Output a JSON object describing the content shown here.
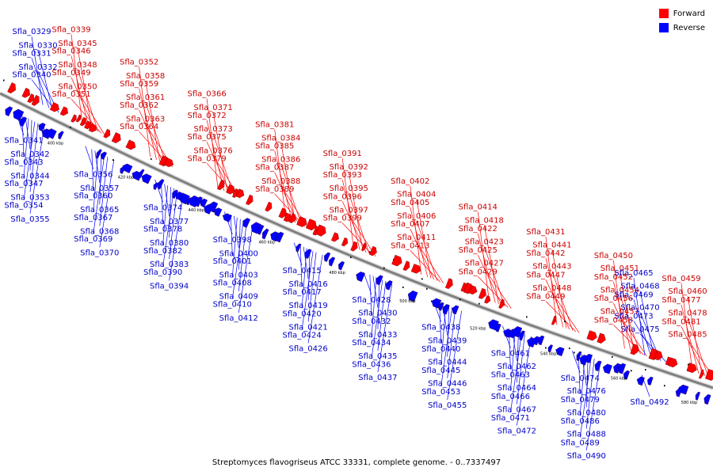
{
  "legend": {
    "forward_label": "Forward",
    "reverse_label": "Reverse",
    "forward_color": "#ff0000",
    "reverse_color": "#0000ff"
  },
  "footer": {
    "caption": "Streptomyces flavogriseus ATCC 33331, complete genome. - 0..7337497"
  },
  "colors": {
    "backbone": "#808080",
    "forward_text": "#cc0000",
    "reverse_text": "#0000cc"
  },
  "ticks": [
    "400 kbp",
    "420 kbp",
    "440 kbp",
    "460 kbp",
    "480 kbp",
    "500 kbp",
    "520 kbp",
    "540 kbp",
    "560 kbp",
    "580 kbp"
  ],
  "forward_genes": [
    "Sfla_0339",
    "Sfla_0345",
    "Sfla_0346",
    "Sfla_0348",
    "Sfla_0349",
    "Sfla_0350",
    "Sfla_0351",
    "Sfla_0352",
    "Sfla_0358",
    "Sfla_0359",
    "Sfla_0361",
    "Sfla_0362",
    "Sfla_0363",
    "Sfla_0364",
    "Sfla_0366",
    "Sfla_0371",
    "Sfla_0372",
    "Sfla_0373",
    "Sfla_0375",
    "Sfla_0376",
    "Sfla_0379",
    "Sfla_0381",
    "Sfla_0384",
    "Sfla_0385",
    "Sfla_0386",
    "Sfla_0387",
    "Sfla_0388",
    "Sfla_0389",
    "Sfla_0391",
    "Sfla_0392",
    "Sfla_0393",
    "Sfla_0395",
    "Sfla_0396",
    "Sfla_0397",
    "Sfla_0399",
    "Sfla_0402",
    "Sfla_0404",
    "Sfla_0405",
    "Sfla_0406",
    "Sfla_0407",
    "Sfla_0411",
    "Sfla_0413",
    "Sfla_0414",
    "Sfla_0418",
    "Sfla_0422",
    "Sfla_0423",
    "Sfla_0425",
    "Sfla_0427",
    "Sfla_0429",
    "Sfla_0431",
    "Sfla_0441",
    "Sfla_0442",
    "Sfla_0443",
    "Sfla_0447",
    "Sfla_0448",
    "Sfla_0449",
    "Sfla_0450",
    "Sfla_0451",
    "Sfla_0452",
    "Sfla_0454",
    "Sfla_0456",
    "Sfla_0457",
    "Sfla_0458",
    "Sfla_0459",
    "Sfla_0460",
    "Sfla_0477",
    "Sfla_0478",
    "Sfla_0481",
    "Sfla_0485"
  ],
  "reverse_genes_top": [
    "Sfla_0329",
    "Sfla_0330",
    "Sfla_0331",
    "Sfla_0332",
    "Sfla_0340",
    "Sfla_0465",
    "Sfla_0468",
    "Sfla_0469",
    "Sfla_0470",
    "Sfla_0473",
    "Sfla_0475"
  ],
  "reverse_genes_bottom": [
    "Sfla_0341",
    "Sfla_0342",
    "Sfla_0343",
    "Sfla_0344",
    "Sfla_0347",
    "Sfla_0353",
    "Sfla_0354",
    "Sfla_0355",
    "Sfla_0356",
    "Sfla_0357",
    "Sfla_0360",
    "Sfla_0365",
    "Sfla_0367",
    "Sfla_0368",
    "Sfla_0369",
    "Sfla_0370",
    "Sfla_0374",
    "Sfla_0377",
    "Sfla_0378",
    "Sfla_0380",
    "Sfla_0382",
    "Sfla_0383",
    "Sfla_0390",
    "Sfla_0394",
    "Sfla_0398",
    "Sfla_0400",
    "Sfla_0401",
    "Sfla_0403",
    "Sfla_0408",
    "Sfla_0409",
    "Sfla_0410",
    "Sfla_0412",
    "Sfla_0415",
    "Sfla_0416",
    "Sfla_0417",
    "Sfla_0419",
    "Sfla_0420",
    "Sfla_0421",
    "Sfla_0424",
    "Sfla_0426",
    "Sfla_0428",
    "Sfla_0430",
    "Sfla_0432",
    "Sfla_0433",
    "Sfla_0434",
    "Sfla_0435",
    "Sfla_0436",
    "Sfla_0437",
    "Sfla_0438",
    "Sfla_0439",
    "Sfla_0440",
    "Sfla_0444",
    "Sfla_0445",
    "Sfla_0446",
    "Sfla_0453",
    "Sfla_0455",
    "Sfla_0461",
    "Sfla_0462",
    "Sfla_0463",
    "Sfla_0464",
    "Sfla_0466",
    "Sfla_0467",
    "Sfla_0471",
    "Sfla_0472",
    "Sfla_0474",
    "Sfla_0476",
    "Sfla_0479",
    "Sfla_0480",
    "Sfla_0486",
    "Sfla_0488",
    "Sfla_0489",
    "Sfla_0490",
    "Sfla_0492"
  ]
}
